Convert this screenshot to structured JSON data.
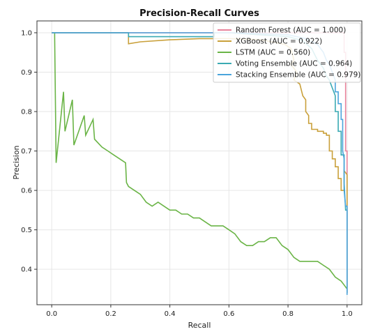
{
  "chart_data": {
    "type": "line",
    "title": "Precision-Recall Curves",
    "xlabel": "Recall",
    "ylabel": "Precision",
    "xlim": [
      -0.05,
      1.05
    ],
    "ylim": [
      0.31,
      1.03
    ],
    "xticks": [
      "0.0",
      "0.2",
      "0.4",
      "0.6",
      "0.8",
      "1.0"
    ],
    "yticks": [
      "0.4",
      "0.5",
      "0.6",
      "0.7",
      "0.8",
      "0.9",
      "1.0"
    ],
    "grid": true,
    "legend_position": "top-right",
    "series": [
      {
        "name": "Random Forest (AUC = 1.000)",
        "color": "#e8839b",
        "points": [
          [
            0,
            1.0
          ],
          [
            0.99,
            1.0
          ],
          [
            0.99,
            0.95
          ],
          [
            0.995,
            0.95
          ],
          [
            0.995,
            0.7
          ],
          [
            1.0,
            0.7
          ],
          [
            1.0,
            0.34
          ]
        ]
      },
      {
        "name": "XGBoost (AUC = 0.922)",
        "color": "#c9a03a",
        "points": [
          [
            0,
            1.0
          ],
          [
            0.26,
            1.0
          ],
          [
            0.26,
            0.972
          ],
          [
            0.3,
            0.977
          ],
          [
            0.4,
            0.982
          ],
          [
            0.5,
            0.985
          ],
          [
            0.6,
            0.985
          ],
          [
            0.7,
            0.983
          ],
          [
            0.76,
            0.975
          ],
          [
            0.79,
            0.97
          ],
          [
            0.81,
            0.96
          ],
          [
            0.82,
            0.93
          ],
          [
            0.81,
            0.92
          ],
          [
            0.83,
            0.9
          ],
          [
            0.82,
            0.88
          ],
          [
            0.84,
            0.87
          ],
          [
            0.85,
            0.84
          ],
          [
            0.86,
            0.83
          ],
          [
            0.86,
            0.8
          ],
          [
            0.87,
            0.79
          ],
          [
            0.87,
            0.77
          ],
          [
            0.88,
            0.77
          ],
          [
            0.88,
            0.755
          ],
          [
            0.9,
            0.755
          ],
          [
            0.9,
            0.75
          ],
          [
            0.92,
            0.75
          ],
          [
            0.92,
            0.745
          ],
          [
            0.93,
            0.745
          ],
          [
            0.93,
            0.74
          ],
          [
            0.94,
            0.74
          ],
          [
            0.94,
            0.7
          ],
          [
            0.95,
            0.7
          ],
          [
            0.95,
            0.68
          ],
          [
            0.96,
            0.68
          ],
          [
            0.96,
            0.66
          ],
          [
            0.97,
            0.66
          ],
          [
            0.97,
            0.63
          ],
          [
            0.98,
            0.63
          ],
          [
            0.98,
            0.6
          ],
          [
            0.99,
            0.6
          ],
          [
            0.99,
            0.65
          ],
          [
            1.0,
            0.64
          ],
          [
            1.0,
            0.34
          ]
        ]
      },
      {
        "name": "LSTM (AUC = 0.560)",
        "color": "#6ab446",
        "points": [
          [
            0.01,
            1.0
          ],
          [
            0.01,
            0.99
          ],
          [
            0.015,
            0.67
          ],
          [
            0.04,
            0.85
          ],
          [
            0.045,
            0.75
          ],
          [
            0.07,
            0.83
          ],
          [
            0.075,
            0.715
          ],
          [
            0.11,
            0.79
          ],
          [
            0.115,
            0.74
          ],
          [
            0.14,
            0.78
          ],
          [
            0.145,
            0.73
          ],
          [
            0.17,
            0.71
          ],
          [
            0.19,
            0.7
          ],
          [
            0.21,
            0.69
          ],
          [
            0.23,
            0.68
          ],
          [
            0.25,
            0.67
          ],
          [
            0.253,
            0.62
          ],
          [
            0.26,
            0.61
          ],
          [
            0.28,
            0.6
          ],
          [
            0.3,
            0.59
          ],
          [
            0.32,
            0.57
          ],
          [
            0.34,
            0.56
          ],
          [
            0.36,
            0.57
          ],
          [
            0.38,
            0.56
          ],
          [
            0.4,
            0.55
          ],
          [
            0.42,
            0.55
          ],
          [
            0.44,
            0.54
          ],
          [
            0.46,
            0.54
          ],
          [
            0.48,
            0.53
          ],
          [
            0.5,
            0.53
          ],
          [
            0.52,
            0.52
          ],
          [
            0.54,
            0.51
          ],
          [
            0.56,
            0.51
          ],
          [
            0.58,
            0.51
          ],
          [
            0.6,
            0.5
          ],
          [
            0.62,
            0.49
          ],
          [
            0.64,
            0.47
          ],
          [
            0.66,
            0.46
          ],
          [
            0.68,
            0.46
          ],
          [
            0.7,
            0.47
          ],
          [
            0.72,
            0.47
          ],
          [
            0.74,
            0.48
          ],
          [
            0.76,
            0.48
          ],
          [
            0.78,
            0.46
          ],
          [
            0.8,
            0.45
          ],
          [
            0.82,
            0.43
          ],
          [
            0.84,
            0.42
          ],
          [
            0.86,
            0.42
          ],
          [
            0.88,
            0.42
          ],
          [
            0.9,
            0.42
          ],
          [
            0.92,
            0.41
          ],
          [
            0.94,
            0.4
          ],
          [
            0.96,
            0.38
          ],
          [
            0.98,
            0.37
          ],
          [
            0.99,
            0.36
          ],
          [
            1.0,
            0.35
          ]
        ]
      },
      {
        "name": "Voting Ensemble (AUC = 0.964)",
        "color": "#3aaab3",
        "points": [
          [
            0,
            1.0
          ],
          [
            0.26,
            1.0
          ],
          [
            0.26,
            0.99
          ],
          [
            0.4,
            0.99
          ],
          [
            0.55,
            0.99
          ],
          [
            0.55,
            1.0
          ],
          [
            0.6,
            1.0
          ],
          [
            0.8,
            0.99
          ],
          [
            0.85,
            0.98
          ],
          [
            0.88,
            0.96
          ],
          [
            0.9,
            0.93
          ],
          [
            0.92,
            0.91
          ],
          [
            0.93,
            0.89
          ],
          [
            0.94,
            0.88
          ],
          [
            0.95,
            0.86
          ],
          [
            0.96,
            0.84
          ],
          [
            0.96,
            0.8
          ],
          [
            0.97,
            0.8
          ],
          [
            0.97,
            0.75
          ],
          [
            0.98,
            0.75
          ],
          [
            0.98,
            0.69
          ],
          [
            0.99,
            0.69
          ],
          [
            0.99,
            0.62
          ],
          [
            0.995,
            0.55
          ],
          [
            1.0,
            0.55
          ],
          [
            1.0,
            0.34
          ]
        ]
      },
      {
        "name": "Stacking Ensemble (AUC = 0.979)",
        "color": "#4aa4dc",
        "points": [
          [
            0,
            1.0
          ],
          [
            0.62,
            1.0
          ],
          [
            0.8,
            0.995
          ],
          [
            0.86,
            0.985
          ],
          [
            0.9,
            0.97
          ],
          [
            0.92,
            0.95
          ],
          [
            0.93,
            0.93
          ],
          [
            0.94,
            0.92
          ],
          [
            0.95,
            0.9
          ],
          [
            0.96,
            0.88
          ],
          [
            0.96,
            0.85
          ],
          [
            0.97,
            0.85
          ],
          [
            0.97,
            0.82
          ],
          [
            0.98,
            0.82
          ],
          [
            0.98,
            0.78
          ],
          [
            0.985,
            0.78
          ],
          [
            0.985,
            0.7
          ],
          [
            0.99,
            0.68
          ],
          [
            0.99,
            0.6
          ],
          [
            0.995,
            0.56
          ],
          [
            1.0,
            0.56
          ],
          [
            1.0,
            0.335
          ]
        ]
      }
    ]
  }
}
